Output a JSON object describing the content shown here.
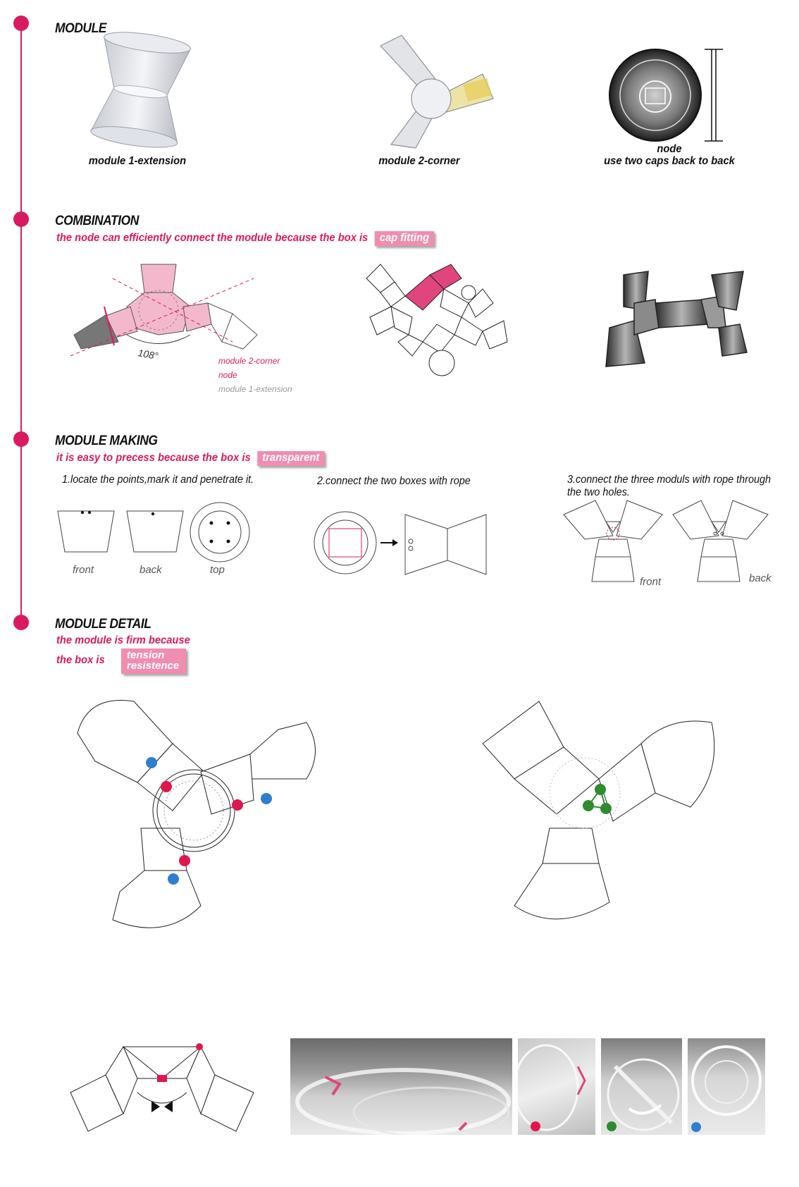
{
  "sections": {
    "module": {
      "heading": "MODULE",
      "captions": [
        "module 1-extension",
        "module 2-corner",
        "node",
        "use two caps back to back"
      ]
    },
    "combination": {
      "heading": "COMBINATION",
      "subtitle": "the node can efficiently connect the module because the box is",
      "badge": "cap fitting",
      "angle_label": "108°",
      "legend": [
        "module 2-corner",
        "node",
        "module 1-extension"
      ]
    },
    "module_making": {
      "heading": "MODULE MAKING",
      "subtitle": "it is easy to precess because the box is",
      "badge": "transparent",
      "steps": [
        "1.locate the points,mark it and penetrate it.",
        "2.connect the two boxes with rope",
        "3.connect the three moduls with rope through",
        "the two holes."
      ],
      "view_labels": [
        "front",
        "back",
        "top",
        "front",
        "back"
      ]
    },
    "module_detail": {
      "heading": "MODULE  DETAIL",
      "subtitle_1": "the module is firm because",
      "subtitle_2": "the box is",
      "badge_1": "tension",
      "badge_2": "resistence"
    }
  },
  "colors": {
    "accent": "#d81b60",
    "badge": "#f08db0",
    "blue": "#2f7fd1",
    "green": "#2e8b2e",
    "red": "#e0174f"
  }
}
